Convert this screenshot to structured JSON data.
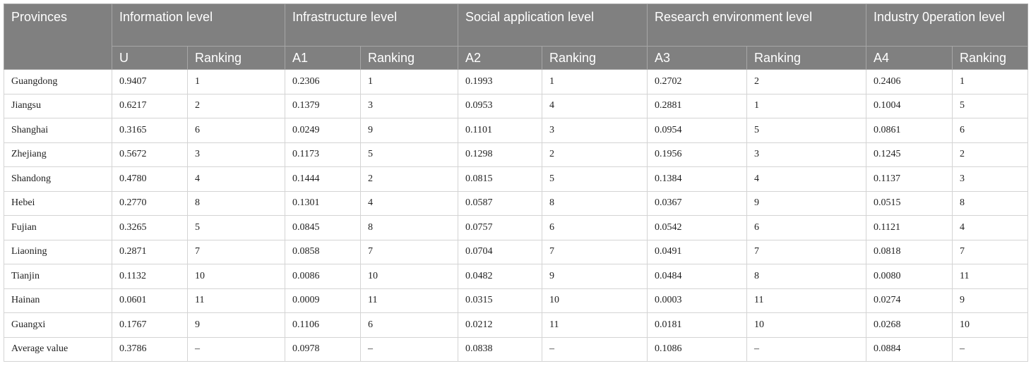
{
  "table": {
    "groups": [
      "Provinces",
      "Information level",
      "Infrastructure level",
      "Social application level",
      "Research environment level",
      "Industry 0peration level"
    ],
    "subheaders": [
      "U",
      "Ranking",
      "A1",
      "Ranking",
      "A2",
      "Ranking",
      "A3",
      "Ranking",
      "A4",
      "Ranking"
    ],
    "rows": [
      [
        "Guangdong",
        "0.9407",
        "1",
        "0.2306",
        "1",
        "0.1993",
        "1",
        "0.2702",
        "2",
        "0.2406",
        "1"
      ],
      [
        "Jiangsu",
        "0.6217",
        "2",
        "0.1379",
        "3",
        "0.0953",
        "4",
        "0.2881",
        "1",
        "0.1004",
        "5"
      ],
      [
        "Shanghai",
        "0.3165",
        "6",
        "0.0249",
        "9",
        "0.1101",
        "3",
        "0.0954",
        "5",
        "0.0861",
        "6"
      ],
      [
        "Zhejiang",
        "0.5672",
        "3",
        "0.1173",
        "5",
        "0.1298",
        "2",
        "0.1956",
        "3",
        "0.1245",
        "2"
      ],
      [
        "Shandong",
        "0.4780",
        "4",
        "0.1444",
        "2",
        "0.0815",
        "5",
        "0.1384",
        "4",
        "0.1137",
        "3"
      ],
      [
        "Hebei",
        "0.2770",
        "8",
        "0.1301",
        "4",
        "0.0587",
        "8",
        "0.0367",
        "9",
        "0.0515",
        "8"
      ],
      [
        "Fujian",
        "0.3265",
        "5",
        "0.0845",
        "8",
        "0.0757",
        "6",
        "0.0542",
        "6",
        "0.1121",
        "4"
      ],
      [
        "Liaoning",
        "0.2871",
        "7",
        "0.0858",
        "7",
        "0.0704",
        "7",
        "0.0491",
        "7",
        "0.0818",
        "7"
      ],
      [
        "Tianjin",
        "0.1132",
        "10",
        "0.0086",
        "10",
        "0.0482",
        "9",
        "0.0484",
        "8",
        "0.0080",
        "11"
      ],
      [
        "Hainan",
        "0.0601",
        "11",
        "0.0009",
        "11",
        "0.0315",
        "10",
        "0.0003",
        "11",
        "0.0274",
        "9"
      ],
      [
        "Guangxi",
        "0.1767",
        "9",
        "0.1106",
        "6",
        "0.0212",
        "11",
        "0.0181",
        "10",
        "0.0268",
        "10"
      ],
      [
        "Average value",
        "0.3786",
        "–",
        "0.0978",
        "–",
        "0.0838",
        "–",
        "0.1086",
        "–",
        "0.0884",
        "–"
      ]
    ]
  }
}
